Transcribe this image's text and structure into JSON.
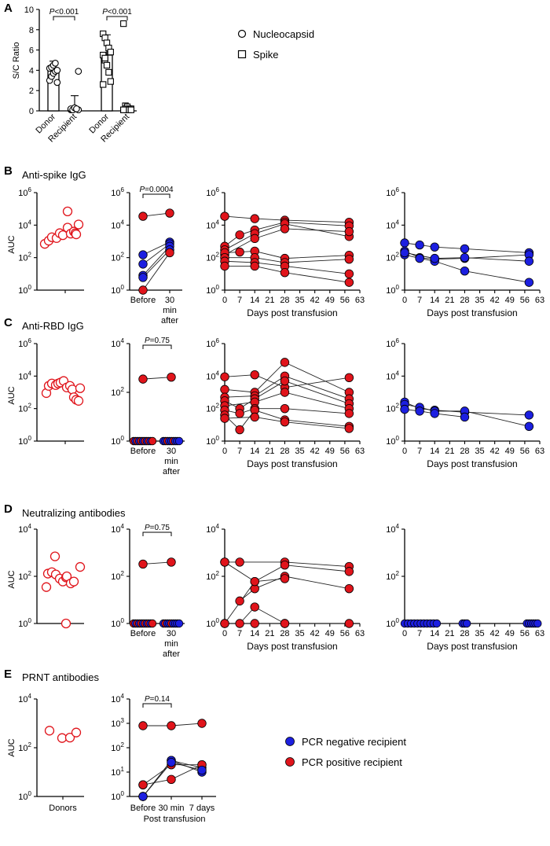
{
  "colors": {
    "red": "#e0141b",
    "blue": "#1c1fe0",
    "open_red": "#e0141b",
    "black": "#000000"
  },
  "panels": {
    "A": {
      "letter": "A"
    },
    "B": {
      "letter": "B",
      "title": "Anti-spike IgG"
    },
    "C": {
      "letter": "C",
      "title": "Anti-RBD IgG"
    },
    "D": {
      "letter": "D",
      "title": "Neutralizing antibodies"
    },
    "E": {
      "letter": "E",
      "title": "PRNT antibodies"
    }
  },
  "legends": {
    "A": [
      {
        "label": "Nucleocapsid",
        "marker": "circle"
      },
      {
        "label": "Spike",
        "marker": "square"
      }
    ],
    "E": [
      {
        "label": "PCR negative recipient",
        "color": "#1c1fe0"
      },
      {
        "label": "PCR positive recipient",
        "color": "#e0141b"
      }
    ]
  },
  "axis_texts": {
    "sc_ratio": "S/C Ratio",
    "auc": "AUC",
    "days_post": "Days post transfusion",
    "before": "Before",
    "min30": "30",
    "min_line": "min",
    "after_line": "after",
    "donors": "Donors",
    "e_before": "Before",
    "e_30min": "30 min",
    "e_7days": "7 days",
    "post_transfusion": "Post transfusion",
    "donor": "Donor",
    "recipient": "Recipient",
    "p_sym": "P"
  },
  "chart_data": [
    {
      "id": "A",
      "type": "bar",
      "ylabel": "S/C Ratio",
      "ylim": [
        0,
        10
      ],
      "yticks": [
        0,
        2,
        4,
        6,
        8,
        10
      ],
      "groups": [
        {
          "category": "Donor",
          "marker": "circle",
          "mean": 4.0,
          "sd": 0.9,
          "points": [
            3.0,
            3.4,
            3.7,
            3.9,
            4.0,
            4.2,
            4.3,
            4.5,
            4.7,
            2.8
          ]
        },
        {
          "category": "Recipient",
          "marker": "circle",
          "mean": 0.3,
          "sd": 1.2,
          "points": [
            0.1,
            0.1,
            0.2,
            0.2,
            0.1,
            0.2,
            0.1,
            0.3,
            0.2,
            3.9
          ]
        },
        {
          "category": "Donor",
          "marker": "square",
          "mean": 5.5,
          "sd": 2.0,
          "points": [
            7.6,
            7.2,
            6.7,
            6.2,
            5.8,
            5.5,
            5.0,
            4.5,
            3.8,
            2.9,
            2.6,
            5.2
          ]
        },
        {
          "category": "Recipient",
          "marker": "square",
          "mean": 0.3,
          "sd": 0.2,
          "points": [
            8.6,
            0.5,
            0.4,
            0.2,
            0.2,
            0.1,
            0.2,
            0.1,
            0.1,
            0.1,
            0.1
          ]
        }
      ],
      "pvalues": [
        {
          "label": "P<0.001",
          "between": [
            0,
            1
          ]
        },
        {
          "label": "P<0.001",
          "between": [
            2,
            3
          ]
        }
      ]
    },
    {
      "id": "B-donors",
      "type": "scatter",
      "ylabel": "AUC",
      "scale": "log",
      "ylim": [
        1,
        1000000
      ],
      "yticks_exp": [
        0,
        2,
        4,
        6
      ],
      "points": [
        700,
        1100,
        1800,
        1600,
        3200,
        2400,
        7000,
        3000,
        4000,
        70000,
        3200,
        2700,
        11000
      ]
    },
    {
      "id": "B-paired",
      "type": "scatter",
      "scale": "log",
      "ylim": [
        1,
        1000000
      ],
      "yticks_exp": [
        0,
        2,
        4,
        6
      ],
      "categories": [
        "Before",
        "30 min after"
      ],
      "pvalue": "P=0.0004",
      "pairs": [
        {
          "color": "red",
          "values": [
            35000,
            55000
          ]
        },
        {
          "color": "blue",
          "values": [
            150,
            900
          ]
        },
        {
          "color": "blue",
          "values": [
            40,
            700
          ]
        },
        {
          "color": "blue",
          "values": [
            8,
            500
          ]
        },
        {
          "color": "blue",
          "values": [
            6,
            300
          ]
        },
        {
          "color": "red",
          "values": [
            1,
            200
          ]
        }
      ]
    },
    {
      "id": "B-positive",
      "type": "line",
      "xlabel": "Days post transfusion",
      "scale": "log",
      "ylim": [
        1,
        1000000
      ],
      "yticks_exp": [
        0,
        2,
        4,
        6
      ],
      "xlim": [
        0,
        63
      ],
      "xticks": [
        0,
        7,
        14,
        21,
        28,
        35,
        42,
        49,
        56,
        63
      ],
      "series": [
        {
          "color": "red",
          "x": [
            0,
            14,
            28,
            58
          ],
          "y": [
            35000,
            25000,
            20000,
            15000
          ]
        },
        {
          "color": "red",
          "x": [
            0,
            7,
            14,
            28,
            58
          ],
          "y": [
            500,
            2500,
            5000,
            15000,
            9000
          ]
        },
        {
          "color": "red",
          "x": [
            0,
            14,
            28,
            58
          ],
          "y": [
            300,
            3000,
            12000,
            2000
          ]
        },
        {
          "color": "red",
          "x": [
            0,
            14,
            28,
            58
          ],
          "y": [
            150,
            1500,
            6000,
            4000
          ]
        },
        {
          "color": "red",
          "x": [
            0,
            7,
            14,
            28,
            58
          ],
          "y": [
            200,
            220,
            250,
            90,
            140
          ]
        },
        {
          "color": "red",
          "x": [
            0,
            14,
            28,
            58
          ],
          "y": [
            100,
            100,
            50,
            80
          ]
        },
        {
          "color": "red",
          "x": [
            0,
            14,
            28,
            58
          ],
          "y": [
            60,
            50,
            30,
            10
          ]
        },
        {
          "color": "red",
          "x": [
            0,
            14,
            28,
            58
          ],
          "y": [
            30,
            30,
            12,
            3
          ]
        }
      ]
    },
    {
      "id": "B-negative",
      "type": "line",
      "xlabel": "Days post transfusion",
      "scale": "log",
      "ylim": [
        1,
        1000000
      ],
      "yticks_exp": [
        0,
        2,
        4,
        6
      ],
      "xlim": [
        0,
        63
      ],
      "xticks": [
        0,
        7,
        14,
        21,
        28,
        35,
        42,
        49,
        56,
        63
      ],
      "series": [
        {
          "color": "blue",
          "x": [
            0,
            7,
            14,
            28,
            58
          ],
          "y": [
            800,
            600,
            450,
            350,
            200
          ]
        },
        {
          "color": "blue",
          "x": [
            0,
            7,
            14,
            28,
            58
          ],
          "y": [
            250,
            100,
            80,
            90,
            150
          ]
        },
        {
          "color": "blue",
          "x": [
            0,
            7,
            14,
            28,
            58
          ],
          "y": [
            150,
            90,
            60,
            15,
            3
          ]
        },
        {
          "color": "blue",
          "x": [
            0,
            14,
            28,
            58
          ],
          "y": [
            200,
            90,
            100,
            60
          ]
        }
      ]
    },
    {
      "id": "C-donors",
      "type": "scatter",
      "ylabel": "AUC",
      "scale": "log",
      "ylim": [
        1,
        1000000
      ],
      "yticks_exp": [
        0,
        2,
        4,
        6
      ],
      "points": [
        900,
        2500,
        3500,
        2800,
        3500,
        4000,
        5000,
        2000,
        2500,
        1500,
        500,
        350,
        300,
        1800
      ]
    },
    {
      "id": "C-paired",
      "type": "scatter",
      "scale": "log",
      "ylim": [
        1,
        10000
      ],
      "yticks_exp": [
        0,
        2,
        4
      ],
      "categories": [
        "Before",
        "30 min after"
      ],
      "pvalue": "P=0.75",
      "pairs": [
        {
          "color": "red",
          "values": [
            350,
            420
          ]
        }
      ],
      "baseline_before": [
        "red",
        "blue",
        "red",
        "blue",
        "red",
        "blue",
        "red",
        "blue",
        "red",
        "blue",
        "red"
      ],
      "baseline_after": [
        "blue",
        "blue",
        "red",
        "blue",
        "blue",
        "red",
        "blue",
        "blue",
        "blue"
      ]
    },
    {
      "id": "C-positive",
      "type": "line",
      "xlabel": "Days post transfusion",
      "scale": "log",
      "ylim": [
        1,
        1000000
      ],
      "yticks_exp": [
        0,
        2,
        4,
        6
      ],
      "xlim": [
        0,
        63
      ],
      "xticks": [
        0,
        7,
        14,
        21,
        28,
        35,
        42,
        49,
        56,
        63
      ],
      "series": [
        {
          "color": "red",
          "x": [
            0,
            14,
            28,
            58
          ],
          "y": [
            9000,
            12000,
            2000,
            8000
          ]
        },
        {
          "color": "red",
          "x": [
            0,
            14,
            28,
            58
          ],
          "y": [
            1500,
            1000,
            70000,
            1000
          ]
        },
        {
          "color": "red",
          "x": [
            0,
            14,
            28,
            58
          ],
          "y": [
            500,
            600,
            10000,
            400
          ]
        },
        {
          "color": "red",
          "x": [
            0,
            7,
            14,
            28,
            58
          ],
          "y": [
            300,
            100,
            400,
            5000,
            200
          ]
        },
        {
          "color": "red",
          "x": [
            0,
            14,
            28,
            58
          ],
          "y": [
            150,
            250,
            1000,
            100
          ]
        },
        {
          "color": "red",
          "x": [
            0,
            7,
            14,
            28,
            58
          ],
          "y": [
            80,
            50,
            100,
            100,
            50
          ]
        },
        {
          "color": "red",
          "x": [
            0,
            7,
            14,
            28,
            58
          ],
          "y": [
            40,
            5,
            80,
            20,
            8
          ]
        },
        {
          "color": "red",
          "x": [
            0,
            14,
            28,
            58
          ],
          "y": [
            25,
            30,
            15,
            6
          ]
        }
      ]
    },
    {
      "id": "C-negative",
      "type": "line",
      "xlabel": "Days post transfusion",
      "scale": "log",
      "ylim": [
        1,
        1000000
      ],
      "yticks_exp": [
        0,
        2,
        4,
        6
      ],
      "xlim": [
        0,
        63
      ],
      "xticks": [
        0,
        7,
        14,
        21,
        28,
        35,
        42,
        49,
        56,
        63
      ],
      "series": [
        {
          "color": "blue",
          "x": [
            0,
            7,
            14,
            28,
            58
          ],
          "y": [
            250,
            100,
            80,
            60,
            40
          ]
        },
        {
          "color": "blue",
          "x": [
            0,
            7,
            14,
            28,
            58
          ],
          "y": [
            180,
            120,
            70,
            70,
            8
          ]
        },
        {
          "color": "blue",
          "x": [
            0,
            7,
            14,
            28
          ],
          "y": [
            90,
            70,
            50,
            30
          ]
        }
      ]
    },
    {
      "id": "D-donors",
      "type": "scatter",
      "ylabel": "AUC",
      "scale": "log",
      "ylim": [
        1,
        10000
      ],
      "yticks_exp": [
        0,
        2,
        4
      ],
      "points": [
        35,
        130,
        150,
        700,
        120,
        80,
        60,
        90,
        100,
        50,
        60,
        1,
        250
      ]
    },
    {
      "id": "D-paired",
      "type": "scatter",
      "scale": "log",
      "ylim": [
        1,
        10000
      ],
      "yticks_exp": [
        0,
        2,
        4
      ],
      "categories": [
        "Before",
        "30 min after"
      ],
      "pvalue": "P=0.75",
      "pairs": [
        {
          "color": "red",
          "values": [
            330,
            400
          ]
        }
      ],
      "baseline_before": [
        "red",
        "blue",
        "red",
        "blue",
        "red",
        "blue",
        "red",
        "blue",
        "red",
        "blue",
        "red"
      ],
      "baseline_after": [
        "blue",
        "red",
        "blue",
        "blue",
        "red",
        "blue",
        "blue",
        "blue",
        "blue"
      ]
    },
    {
      "id": "D-positive",
      "type": "line",
      "xlabel": "Days post transfusion",
      "scale": "log",
      "ylim": [
        1,
        10000
      ],
      "yticks_exp": [
        0,
        2,
        4
      ],
      "xlim": [
        0,
        63
      ],
      "xticks": [
        0,
        7,
        14,
        21,
        28,
        35,
        42,
        49,
        56,
        63
      ],
      "series": [
        {
          "color": "red",
          "x": [
            0,
            7,
            28,
            58
          ],
          "y": [
            400,
            400,
            400,
            260
          ]
        },
        {
          "color": "red",
          "x": [
            0,
            14,
            28,
            58
          ],
          "y": [
            400,
            60,
            300,
            160
          ]
        },
        {
          "color": "red",
          "x": [
            7,
            14,
            28,
            58
          ],
          "y": [
            9,
            30,
            100,
            30
          ]
        },
        {
          "color": "red",
          "x": [
            0,
            14,
            28
          ],
          "y": [
            1,
            60,
            80
          ]
        },
        {
          "color": "red",
          "x": [
            0,
            14,
            28,
            58
          ],
          "y": [
            1,
            1,
            1,
            1
          ]
        },
        {
          "color": "red",
          "x": [
            7,
            14,
            28
          ],
          "y": [
            1,
            5,
            1
          ]
        }
      ]
    },
    {
      "id": "D-negative",
      "type": "scatter",
      "xlabel": "Days post transfusion",
      "scale": "log",
      "ylim": [
        1,
        10000
      ],
      "yticks_exp": [
        0,
        2,
        4
      ],
      "xlim": [
        0,
        63
      ],
      "xticks": [
        0,
        7,
        14,
        21,
        28,
        35,
        42,
        49,
        56,
        63
      ],
      "points_x": [
        0,
        1.5,
        3,
        4.5,
        6,
        7.5,
        9,
        10.5,
        12,
        13.5,
        15,
        27,
        28,
        29,
        57,
        58,
        59,
        60,
        61,
        62
      ],
      "value": 1,
      "color": "blue"
    },
    {
      "id": "E-donors",
      "type": "scatter",
      "ylabel": "AUC",
      "scale": "log",
      "ylim": [
        1,
        10000
      ],
      "yticks_exp": [
        0,
        2,
        4
      ],
      "xlabel": "Donors",
      "points": [
        500,
        250,
        260,
        420
      ]
    },
    {
      "id": "E-paired",
      "type": "line",
      "xlabel": "Post transfusion",
      "scale": "log",
      "ylim": [
        1,
        10000
      ],
      "yticks_exp": [
        0,
        1,
        2,
        3,
        4
      ],
      "categories": [
        "Before",
        "30 min",
        "7 days"
      ],
      "pvalue": "P=0.14",
      "series": [
        {
          "color": "red",
          "values": [
            800,
            800,
            1000
          ]
        },
        {
          "color": "red",
          "values": [
            3,
            20,
            20
          ]
        },
        {
          "color": "red",
          "values": [
            1,
            30,
            15
          ]
        },
        {
          "color": "red",
          "values": [
            3,
            5,
            20
          ]
        },
        {
          "color": "blue",
          "values": [
            1,
            30,
            10
          ]
        },
        {
          "color": "blue",
          "values": [
            1,
            25,
            12
          ]
        }
      ]
    }
  ]
}
